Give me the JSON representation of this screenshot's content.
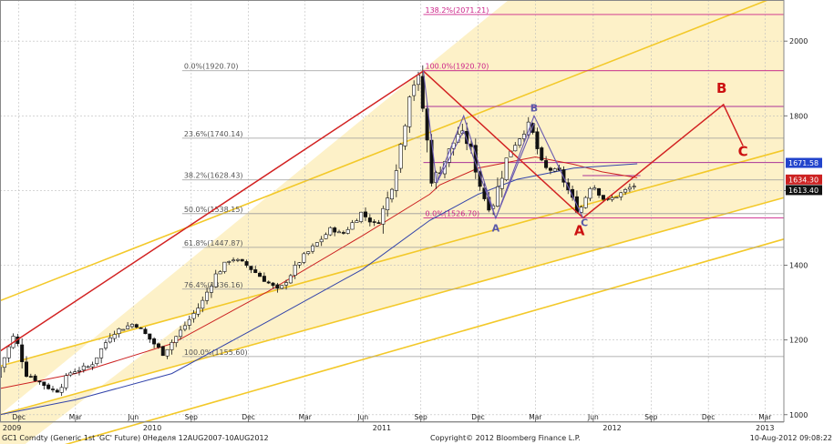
{
  "chart_data": {
    "type": "candlestick",
    "ylim": [
      980,
      2110
    ],
    "y_ticks": [
      1000,
      1200,
      1400,
      1600,
      1800,
      2000
    ],
    "x_range": [
      "2009-11-01",
      "2013-03-31"
    ],
    "x_month_labels": [
      {
        "date": "2009-12-01",
        "label": "Dec"
      },
      {
        "date": "2010-03-01",
        "label": "Mar"
      },
      {
        "date": "2010-06-01",
        "label": "Jun"
      },
      {
        "date": "2010-09-01",
        "label": "Sep"
      },
      {
        "date": "2010-12-01",
        "label": "Dec"
      },
      {
        "date": "2011-03-01",
        "label": "Mar"
      },
      {
        "date": "2011-06-01",
        "label": "Jun"
      },
      {
        "date": "2011-09-01",
        "label": "Sep"
      },
      {
        "date": "2011-12-01",
        "label": "Dec"
      },
      {
        "date": "2012-03-01",
        "label": "Mar"
      },
      {
        "date": "2012-06-01",
        "label": "Jun"
      },
      {
        "date": "2012-09-01",
        "label": "Sep"
      },
      {
        "date": "2012-12-01",
        "label": "Dec"
      },
      {
        "date": "2013-03-01",
        "label": "Mar"
      }
    ],
    "x_year_labels": [
      {
        "date": "2009-11-20",
        "label": "2009"
      },
      {
        "date": "2010-07-01",
        "label": "2010"
      },
      {
        "date": "2011-07-01",
        "label": "2011"
      },
      {
        "date": "2012-07-01",
        "label": "2012"
      },
      {
        "date": "2013-03-01",
        "label": "2013"
      }
    ],
    "price_path": [
      [
        "2009-11-01",
        1100
      ],
      [
        "2009-12-01",
        1215
      ],
      [
        "2009-12-20",
        1110
      ],
      [
        "2010-02-05",
        1060
      ],
      [
        "2010-03-01",
        1115
      ],
      [
        "2010-04-01",
        1130
      ],
      [
        "2010-05-05",
        1220
      ],
      [
        "2010-06-10",
        1245
      ],
      [
        "2010-07-25",
        1165
      ],
      [
        "2010-08-25",
        1230
      ],
      [
        "2010-09-25",
        1300
      ],
      [
        "2010-10-15",
        1370
      ],
      [
        "2010-11-10",
        1420
      ],
      [
        "2010-12-05",
        1400
      ],
      [
        "2011-01-25",
        1330
      ],
      [
        "2011-03-01",
        1415
      ],
      [
        "2011-04-20",
        1500
      ],
      [
        "2011-05-05",
        1480
      ],
      [
        "2011-06-05",
        1540
      ],
      [
        "2011-06-30",
        1505
      ],
      [
        "2011-07-20",
        1590
      ],
      [
        "2011-08-10",
        1745
      ],
      [
        "2011-08-22",
        1880
      ],
      [
        "2011-09-05",
        1900
      ],
      [
        "2011-09-26",
        1625
      ],
      [
        "2011-10-10",
        1660
      ],
      [
        "2011-11-08",
        1760
      ],
      [
        "2011-11-25",
        1720
      ],
      [
        "2011-12-15",
        1590
      ],
      [
        "2011-12-29",
        1550
      ],
      [
        "2012-01-25",
        1700
      ],
      [
        "2012-02-28",
        1780
      ],
      [
        "2012-03-20",
        1660
      ],
      [
        "2012-04-15",
        1650
      ],
      [
        "2012-05-16",
        1540
      ],
      [
        "2012-06-05",
        1620
      ],
      [
        "2012-06-28",
        1570
      ],
      [
        "2012-07-20",
        1590
      ],
      [
        "2012-08-10",
        1613
      ]
    ],
    "last_price": 1613.4,
    "moving_averages": [
      {
        "color": "#cc2222",
        "points": [
          [
            "2009-11-01",
            1070
          ],
          [
            "2010-03-01",
            1110
          ],
          [
            "2010-08-01",
            1190
          ],
          [
            "2011-01-01",
            1330
          ],
          [
            "2011-06-01",
            1480
          ],
          [
            "2011-09-15",
            1590
          ],
          [
            "2011-10-01",
            1615
          ],
          [
            "2011-12-01",
            1660
          ],
          [
            "2012-03-01",
            1690
          ],
          [
            "2012-05-01",
            1670
          ],
          [
            "2012-06-15",
            1650
          ],
          [
            "2012-08-10",
            1634.3
          ]
        ]
      },
      {
        "color": "#3344aa",
        "points": [
          [
            "2009-11-01",
            1000
          ],
          [
            "2010-03-01",
            1040
          ],
          [
            "2010-08-01",
            1110
          ],
          [
            "2011-01-01",
            1250
          ],
          [
            "2011-06-01",
            1390
          ],
          [
            "2011-09-15",
            1520
          ],
          [
            "2011-12-01",
            1590
          ],
          [
            "2012-02-01",
            1630
          ],
          [
            "2012-05-01",
            1660
          ],
          [
            "2012-08-10",
            1671.58
          ]
        ]
      }
    ],
    "price_labels": [
      {
        "value": "1671.58",
        "y": 1671.58,
        "bg": "#2244cc"
      },
      {
        "value": "1634.30",
        "y": 1634.3,
        "bg": "#cc2222"
      },
      {
        "value": "1613.40",
        "y": 1613.4,
        "bg": "#111111"
      }
    ],
    "trend_channel": {
      "bands": [
        {
          "y0": 1130,
          "y1": 1708
        },
        {
          "y0": 1000,
          "y1": 1581
        }
      ],
      "lines": [
        {
          "y0": 1305,
          "y1": 2127
        },
        {
          "y0": 1130,
          "y1": 1708
        },
        {
          "y0": 1000,
          "y1": 1581
        },
        {
          "y0": 870,
          "y1": 1470
        }
      ],
      "x0": "2009-11-01",
      "x1": "2013-03-31"
    },
    "fibonacci": {
      "levels": [
        {
          "label": "138.2%(2071.21)",
          "value": 2071.21,
          "color": "#cc2288"
        },
        {
          "label": "100.0%(1920.70)",
          "value": 1920.7,
          "color": "#cc2288"
        },
        {
          "label": "0.0%(1526.70)",
          "value": 1526.7,
          "color": "#cc2288"
        }
      ],
      "retracement": [
        {
          "label": "0.0%(1920.70)",
          "value": 1920.7
        },
        {
          "label": "23.6%(1740.14)",
          "value": 1740.14
        },
        {
          "label": "38.2%(1628.43)",
          "value": 1628.43
        },
        {
          "label": "50.0%(1538.15)",
          "value": 1538.15
        },
        {
          "label": "61.8%(1447.87)",
          "value": 1447.87
        },
        {
          "label": "76.4%(1336.16)",
          "value": 1336.16
        },
        {
          "label": "100.0%(1155.60)",
          "value": 1155.6
        }
      ]
    },
    "horizontal_lines": [
      {
        "value": 1825,
        "color": "#aa3399",
        "from": "2011-09-05",
        "to": "2013-03-31"
      },
      {
        "value": 1675,
        "color": "#aa3399",
        "from": "2011-09-05",
        "to": "2013-03-31"
      },
      {
        "value": 1640,
        "color": "#aa3399",
        "from": "2012-05-15",
        "to": "2012-08-15"
      }
    ],
    "red_path": [
      [
        "2009-11-01",
        1170
      ],
      [
        "2011-09-05",
        1920
      ],
      [
        "2012-05-16",
        1526.7
      ],
      [
        "2012-12-25",
        1830
      ],
      [
        "2013-01-25",
        1720
      ]
    ],
    "purple_pattern": {
      "color": "#6a5ab0",
      "paths": [
        [
          [
            "2011-09-05",
            1920
          ],
          [
            "2011-09-26",
            1620
          ],
          [
            "2011-11-08",
            1800
          ],
          [
            "2011-12-29",
            1526
          ],
          [
            "2012-02-28",
            1800
          ],
          [
            "2012-05-16",
            1526
          ]
        ],
        [
          [
            "2011-09-26",
            1620
          ],
          [
            "2011-11-08",
            1760
          ],
          [
            "2011-12-29",
            1526
          ]
        ],
        [
          [
            "2011-12-29",
            1526
          ],
          [
            "2012-02-28",
            1780
          ]
        ]
      ]
    },
    "annotations": [
      {
        "text": "B",
        "date": "2012-12-22",
        "y": 1862,
        "color": "#cc1111",
        "size": 15
      },
      {
        "text": "C",
        "date": "2013-01-25",
        "y": 1692,
        "color": "#cc1111",
        "size": 15
      },
      {
        "text": "A",
        "date": "2012-05-10",
        "y": 1480,
        "color": "#cc1111",
        "size": 15
      },
      {
        "text": "C",
        "date": "2012-05-18",
        "y": 1505,
        "color": "#5a5aa8",
        "size": 11
      },
      {
        "text": "A",
        "date": "2011-12-29",
        "y": 1490,
        "color": "#5a5aa8",
        "size": 11
      },
      {
        "text": "B",
        "date": "2012-02-28",
        "y": 1812,
        "color": "#5a5aa8",
        "size": 11
      }
    ]
  },
  "footer": {
    "left": "GC1 Comdty (Generic 1st 'GC' Future) 0Неделя 12AUG2007-10AUG2012",
    "center": "Copyright© 2012 Bloomberg Finance L.P.",
    "right": "10-Aug-2012 09:08:22"
  },
  "colors": {
    "channel_fill": "#fdf1c8",
    "channel_line": "#f3c92a",
    "grid": "#bdbdbd",
    "candle_up": "#ffffff",
    "candle_down": "#111111"
  }
}
